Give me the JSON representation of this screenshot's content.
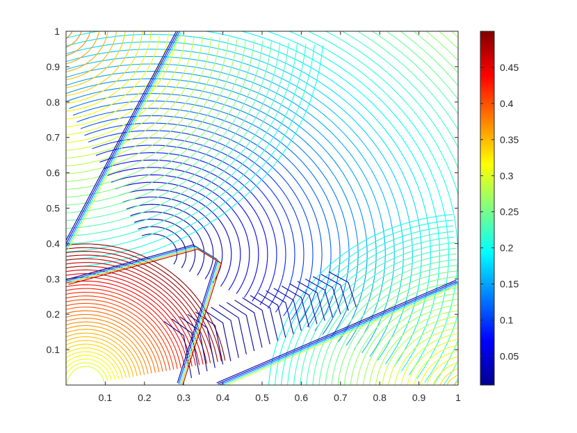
{
  "chart_data": {
    "type": "contour",
    "title": "",
    "xlabel": "",
    "ylabel": "",
    "xlim": [
      0,
      1
    ],
    "ylim": [
      0,
      1
    ],
    "xticks": [
      "0.1",
      "0.2",
      "0.3",
      "0.4",
      "0.5",
      "0.6",
      "0.7",
      "0.8",
      "0.9",
      "1"
    ],
    "yticks": [
      "0.1",
      "0.2",
      "0.3",
      "0.4",
      "0.5",
      "0.6",
      "0.7",
      "0.8",
      "0.9",
      "1"
    ],
    "colorbar": {
      "colormap": "jet",
      "range": [
        0.01,
        0.5
      ],
      "ticks": [
        "0.05",
        "0.1",
        "0.15",
        "0.2",
        "0.25",
        "0.3",
        "0.35",
        "0.4",
        "0.45"
      ]
    },
    "contour_levels": 60,
    "regions": [
      {
        "name": "upper-left wedge",
        "value_range": [
          0.2,
          0.38
        ]
      },
      {
        "name": "lower-left lobe",
        "value_range": [
          0.3,
          0.5
        ]
      },
      {
        "name": "right fan",
        "value_range": [
          0.02,
          0.3
        ]
      },
      {
        "name": "lower-right wedge",
        "value_range": [
          0.2,
          0.35
        ]
      }
    ],
    "discontinuities": [
      {
        "x": [
          0.0,
          0.29
        ],
        "y": [
          0.39,
          1.0
        ]
      },
      {
        "x": [
          0.0,
          0.33,
          0.39,
          0.29
        ],
        "y": [
          0.29,
          0.39,
          0.35,
          0.0
        ]
      },
      {
        "x": [
          0.39,
          1.0
        ],
        "y": [
          0.0,
          0.29
        ]
      }
    ]
  }
}
